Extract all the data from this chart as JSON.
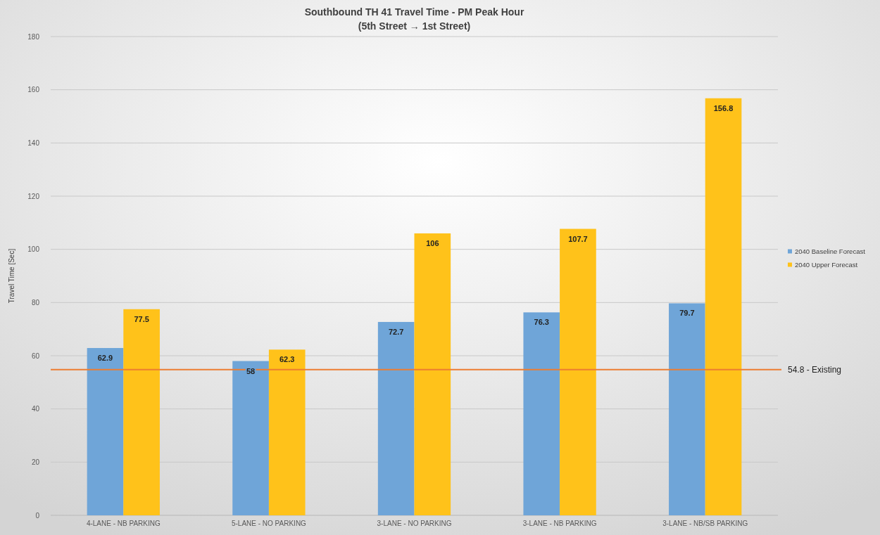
{
  "chart_data": {
    "type": "bar",
    "title": "Southbound TH 41 Travel Time - PM Peak Hour",
    "subtitle": "(5th Street → 1st Street)",
    "ylabel": "Travel Time [Sec]",
    "categories": [
      "4-LANE - NB PARKING",
      "5-LANE - NO PARKING",
      "3-LANE - NO PARKING",
      "3-LANE - NB PARKING",
      "3-LANE - NB/SB PARKING"
    ],
    "series": [
      {
        "name": "2040 Baseline Forecast",
        "color": "#6fa5d8",
        "values": [
          62.9,
          58,
          72.7,
          76.3,
          79.7
        ]
      },
      {
        "name": "2040 Upper Forecast",
        "color": "#ffc21a",
        "values": [
          77.5,
          62.3,
          106,
          107.7,
          156.8
        ]
      }
    ],
    "ylim": [
      0,
      180
    ],
    "yticks": [
      0,
      20,
      40,
      60,
      80,
      100,
      120,
      140,
      160,
      180
    ],
    "grid": "y",
    "legend": "right",
    "data_labels": true,
    "ref_lines": [
      {
        "axis": "y",
        "value": 54.8,
        "label": "54.8 - Existing",
        "color": "#ed7d31"
      }
    ]
  }
}
